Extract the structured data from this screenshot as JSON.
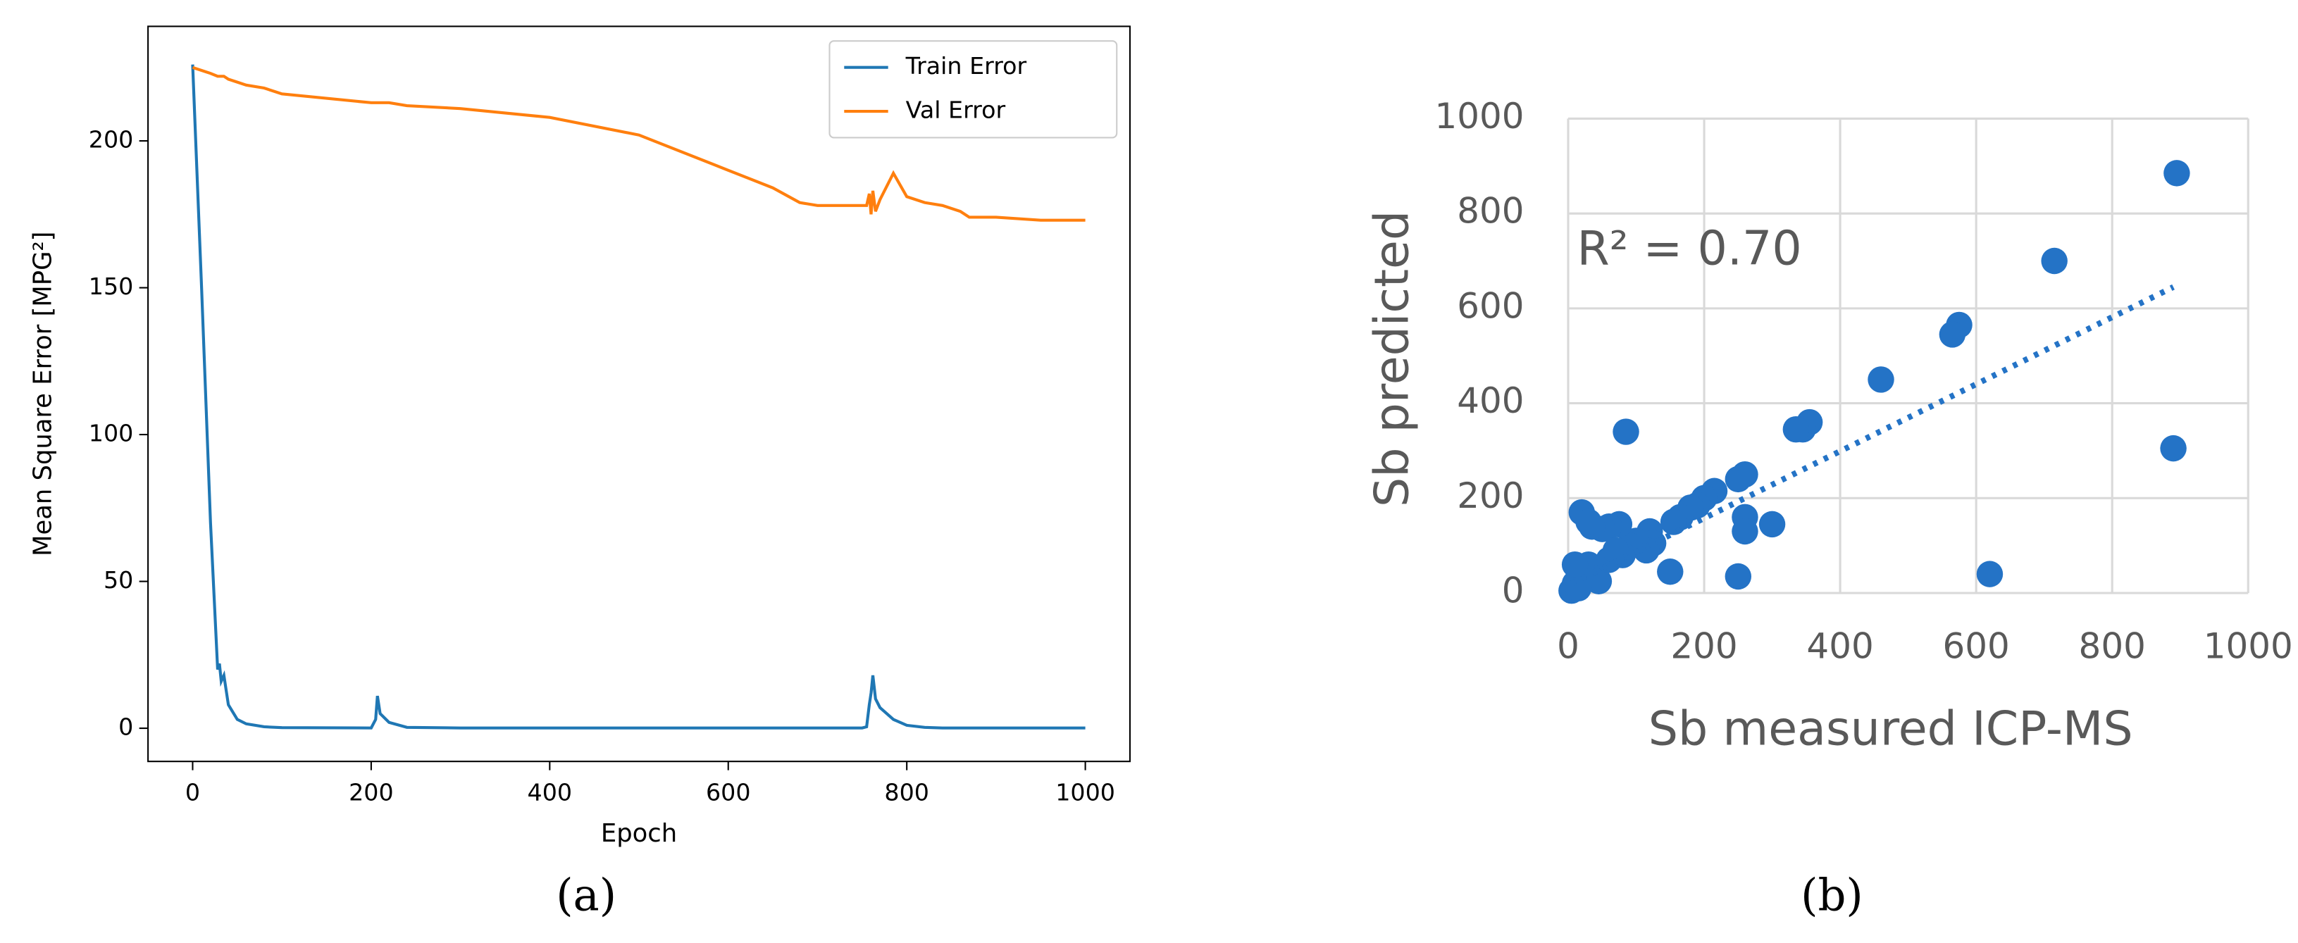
{
  "chart_data": [
    {
      "type": "line",
      "caption": "(a)",
      "xlabel": "Epoch",
      "ylabel": "Mean Square Error [MPG²]",
      "x": [
        0,
        10,
        20,
        28,
        30,
        32,
        35,
        40,
        50,
        60,
        80,
        100,
        200,
        205,
        207,
        210,
        220,
        240,
        300,
        400,
        500,
        600,
        650,
        680,
        700,
        750,
        755,
        758,
        760,
        762,
        765,
        770,
        785,
        800,
        820,
        840,
        860,
        870,
        900,
        950,
        1000
      ],
      "series": [
        {
          "name": "Train Error",
          "color": "#1f77b4",
          "values": [
            226,
            150,
            70,
            20,
            22,
            16,
            18,
            8,
            3,
            1.5,
            0.5,
            0.2,
            0.1,
            3,
            11,
            5,
            2,
            0.3,
            0.1,
            0.1,
            0.1,
            0.1,
            0.1,
            0.1,
            0.1,
            0.1,
            0.5,
            8,
            12,
            18,
            10,
            7,
            3,
            1,
            0.3,
            0.1,
            0.1,
            0.1,
            0.1,
            0.1,
            0.1
          ]
        },
        {
          "name": "Val Error",
          "color": "#ff7f0e",
          "values": [
            225,
            224,
            223,
            222,
            222,
            222,
            222,
            221,
            220,
            219,
            218,
            216,
            213,
            213,
            213,
            213,
            213,
            212,
            211,
            208,
            202,
            190,
            184,
            179,
            178,
            178,
            178,
            182,
            175,
            183,
            176,
            180,
            189,
            181,
            179,
            178,
            176,
            174,
            174,
            173,
            173
          ]
        }
      ],
      "xlim": [
        -50,
        1050
      ],
      "ylim": [
        -11.3,
        239
      ],
      "xticks": [
        0,
        200,
        400,
        600,
        800,
        1000
      ],
      "yticks": [
        0,
        50,
        100,
        150,
        200
      ],
      "legend": "upper right"
    },
    {
      "type": "scatter",
      "caption": "(b)",
      "xlabel": "Sb measured ICP-MS",
      "ylabel": "Sb predicted",
      "annotation": "R² = 0.70",
      "color": "#2473c6",
      "x": [
        895,
        715,
        575,
        565,
        460,
        355,
        345,
        335,
        890,
        620,
        260,
        250,
        215,
        200,
        190,
        180,
        165,
        155,
        85,
        260,
        260,
        300,
        250,
        150,
        120,
        125,
        115,
        100,
        90,
        80,
        75,
        60,
        50,
        35,
        20,
        30,
        40,
        45,
        30,
        20,
        10,
        5,
        15,
        10,
        60,
        70
      ],
      "values": [
        885,
        700,
        565,
        545,
        450,
        360,
        345,
        345,
        305,
        40,
        250,
        240,
        215,
        200,
        185,
        180,
        160,
        150,
        340,
        160,
        130,
        145,
        35,
        45,
        130,
        105,
        90,
        110,
        100,
        80,
        145,
        140,
        135,
        140,
        170,
        150,
        40,
        25,
        60,
        50,
        20,
        5,
        10,
        60,
        70,
        90
      ],
      "trendline": {
        "x": [
          5,
          890
        ],
        "values": [
          20,
          645
        ]
      },
      "xlim": [
        0,
        1000
      ],
      "ylim": [
        0,
        1000
      ],
      "xticks": [
        0,
        200,
        400,
        600,
        800,
        1000
      ],
      "yticks": [
        0,
        200,
        400,
        600,
        800,
        1000
      ],
      "grid": true
    }
  ]
}
